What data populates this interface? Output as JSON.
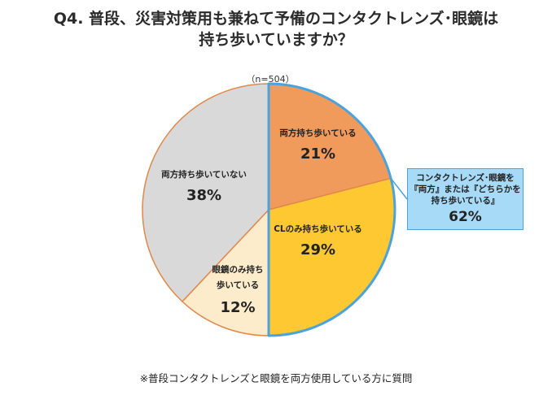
{
  "header": {
    "title_line1": "Q4. 普段、災害対策用も兼ねて予備のコンタクトレンズ･眼鏡は",
    "title_line2": "持ち歩いていますか？"
  },
  "sample_size": "（n=504）",
  "chart_data": {
    "type": "pie",
    "title": "Q4. 普段、災害対策用も兼ねて予備のコンタクトレンズ･眼鏡は持ち歩いていますか？",
    "sample": "n=504",
    "slices": [
      {
        "label": "両方持ち歩いている",
        "value": 21,
        "display": "21%",
        "color": "#f09a5c"
      },
      {
        "label": "CLのみ持ち歩いている",
        "value": 29,
        "display": "29%",
        "color": "#fdc832"
      },
      {
        "label": "眼鏡のみ持ち歩いている",
        "label_line1": "眼鏡のみ持ち",
        "label_line2": "歩いている",
        "value": 12,
        "display": "12%",
        "color": "#fdeccb"
      },
      {
        "label": "両方持ち歩いていない",
        "value": 38,
        "display": "38%",
        "color": "#d9d9d9"
      }
    ],
    "callout": {
      "line1": "コンタクトレンズ･眼鏡を",
      "line2": "『両方』または『どちらかを",
      "line3": "持ち歩いている』",
      "value": 62,
      "display": "62%",
      "fill_color": "#a6daf7",
      "highlight_color": "#4aa3dc"
    },
    "outline_color": "#e0884c"
  },
  "footnote": "※普段コンタクトレンズと眼鏡を両方使用している方に質問"
}
